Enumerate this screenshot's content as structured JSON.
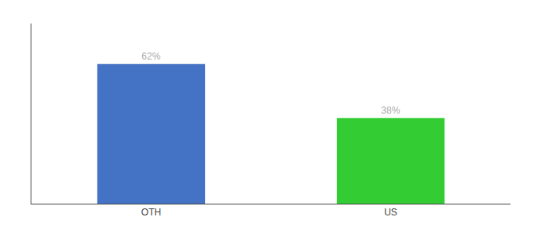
{
  "chart_data": {
    "type": "bar",
    "categories": [
      "OTH",
      "US"
    ],
    "values": [
      62,
      38
    ],
    "value_labels": [
      "62%",
      "38%"
    ],
    "colors": [
      "#4472c4",
      "#33cc33"
    ],
    "ylim": [
      0,
      80
    ],
    "tick_labels": "x",
    "data_labels": true,
    "grid": false
  }
}
